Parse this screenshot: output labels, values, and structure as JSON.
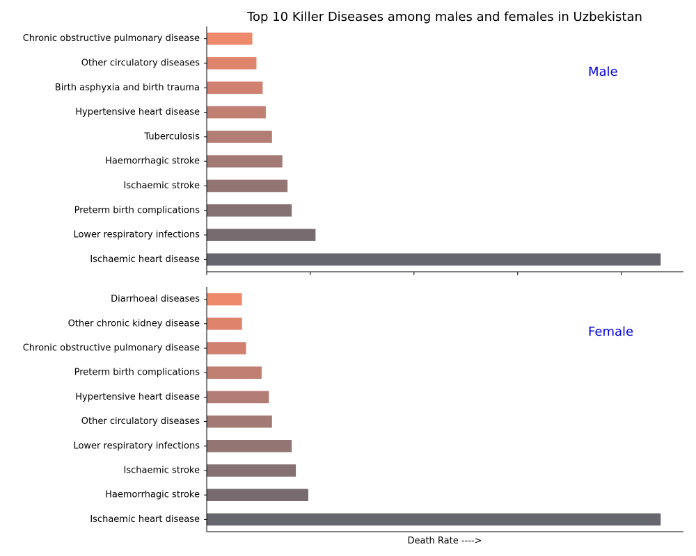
{
  "chart_data": {
    "type": "bar",
    "orientation": "horizontal",
    "title": "Top 10 Killer Diseases among males and females in Uzbekistan",
    "xlabel": "Death Rate ---->",
    "x_tick_labels_shown": false,
    "xlim": [
      0,
      230
    ],
    "grid": false,
    "legend": "none",
    "panels": [
      {
        "name": "Male",
        "annotation": "Male",
        "annotation_color": "#0000dd",
        "categories": [
          "Ischaemic heart disease",
          "Lower respiratory infections",
          "Preterm birth complications",
          "Ischaemic stroke",
          "Haemorrhagic stroke",
          "Tuberculosis",
          "Hypertensive heart disease",
          "Birth asphyxia and birth trauma",
          "Other circulatory diseases",
          "Chronic obstructive pulmonary disease"
        ],
        "values": [
          219,
          52.5,
          41,
          39,
          36.5,
          31.5,
          28.5,
          27,
          24,
          22
        ],
        "colors": [
          "#66666f",
          "#776b70",
          "#857072",
          "#937573",
          "#a27974",
          "#b27d74",
          "#c17f72",
          "#d08170",
          "#de846d",
          "#ef896b"
        ]
      },
      {
        "name": "Female",
        "annotation": "Female",
        "annotation_color": "#0000dd",
        "categories": [
          "Ischaemic heart disease",
          "Haemorrhagic stroke",
          "Ischaemic stroke",
          "Lower respiratory infections",
          "Other circulatory diseases",
          "Hypertensive heart disease",
          "Preterm birth complications",
          "Chronic obstructive pulmonary disease",
          "Other chronic kidney disease",
          "Diarrhoeal diseases"
        ],
        "values": [
          219,
          49,
          43,
          41,
          31.5,
          30,
          26.5,
          19,
          17,
          17
        ],
        "colors": [
          "#66666f",
          "#776b70",
          "#857072",
          "#937573",
          "#a27974",
          "#b27d74",
          "#c17f72",
          "#d08170",
          "#de846d",
          "#ef896b"
        ]
      }
    ]
  }
}
